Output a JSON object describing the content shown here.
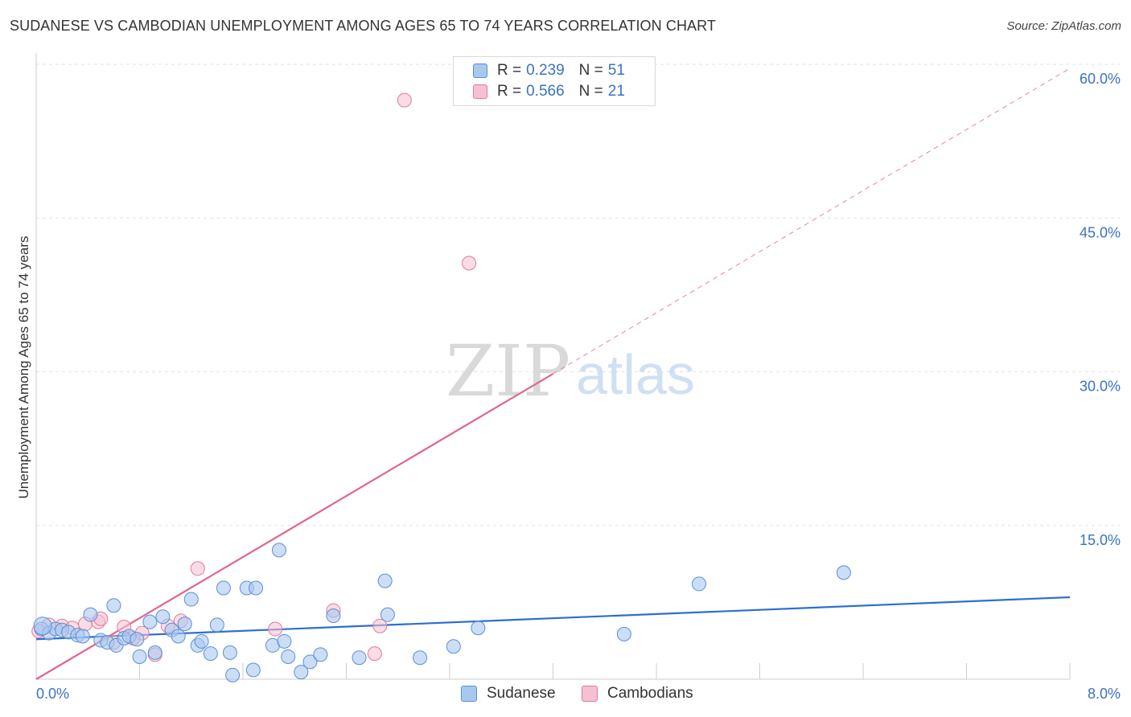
{
  "header": {
    "title": "SUDANESE VS CAMBODIAN UNEMPLOYMENT AMONG AGES 65 TO 74 YEARS CORRELATION CHART",
    "source": "Source: ZipAtlas.com"
  },
  "watermark": {
    "zip": "ZIP",
    "atlas": "atlas"
  },
  "legend": {
    "sudanese": {
      "r_label": "R =",
      "r_value": "0.239",
      "n_label": "N =",
      "n_value": "51"
    },
    "cambodians": {
      "r_label": "R =",
      "r_value": "0.566",
      "n_label": "N =",
      "n_value": "21"
    }
  },
  "colors": {
    "sudanese_fill": "#a8c8f0",
    "sudanese_stroke": "#5b8fd6",
    "sudanese_line": "#2c6fd1",
    "cambodians_fill": "#f7c0d0",
    "cambodians_stroke": "#e07a9c",
    "cambodians_line": "#e0668f",
    "grid": "#e2e2e2",
    "tick_text": "#3a72c4"
  },
  "chart_data": {
    "type": "scatter",
    "title": "SUDANESE VS CAMBODIAN UNEMPLOYMENT AMONG AGES 65 TO 74 YEARS CORRELATION CHART",
    "xlabel": "",
    "ylabel": "Unemployment Among Ages 65 to 74 years",
    "xlim": [
      0,
      8
    ],
    "ylim": [
      0,
      60
    ],
    "x_tick_labels": [
      "0.0%",
      "8.0%"
    ],
    "y_ticks": [
      15,
      30,
      45,
      60
    ],
    "y_tick_labels": [
      "15.0%",
      "30.0%",
      "45.0%",
      "60.0%"
    ],
    "grid": true,
    "series": [
      {
        "name": "Sudanese",
        "r": 0.239,
        "n": 51,
        "points": [
          [
            0.04,
            4.9
          ],
          [
            0.1,
            4.5
          ],
          [
            0.15,
            4.9
          ],
          [
            0.2,
            4.8
          ],
          [
            0.25,
            4.6
          ],
          [
            0.32,
            4.3
          ],
          [
            0.36,
            4.2
          ],
          [
            0.42,
            6.3
          ],
          [
            0.5,
            3.8
          ],
          [
            0.55,
            3.6
          ],
          [
            0.6,
            7.2
          ],
          [
            0.62,
            3.3
          ],
          [
            0.68,
            4.0
          ],
          [
            0.72,
            4.2
          ],
          [
            0.78,
            3.9
          ],
          [
            0.8,
            2.2
          ],
          [
            0.88,
            5.6
          ],
          [
            0.92,
            2.6
          ],
          [
            0.98,
            6.1
          ],
          [
            1.05,
            4.8
          ],
          [
            1.1,
            4.2
          ],
          [
            1.15,
            5.4
          ],
          [
            1.2,
            7.8
          ],
          [
            1.25,
            3.3
          ],
          [
            1.28,
            3.7
          ],
          [
            1.35,
            2.5
          ],
          [
            1.4,
            5.3
          ],
          [
            1.45,
            8.9
          ],
          [
            1.5,
            2.6
          ],
          [
            1.52,
            0.4
          ],
          [
            1.63,
            8.9
          ],
          [
            1.68,
            0.9
          ],
          [
            1.7,
            8.9
          ],
          [
            1.83,
            3.3
          ],
          [
            1.88,
            12.6
          ],
          [
            1.92,
            3.7
          ],
          [
            1.95,
            2.2
          ],
          [
            2.05,
            0.7
          ],
          [
            2.12,
            1.7
          ],
          [
            2.2,
            2.4
          ],
          [
            2.3,
            6.2
          ],
          [
            2.5,
            2.1
          ],
          [
            2.7,
            9.6
          ],
          [
            2.72,
            6.3
          ],
          [
            2.97,
            2.1
          ],
          [
            3.23,
            3.2
          ],
          [
            3.42,
            5.0
          ],
          [
            4.55,
            4.4
          ],
          [
            5.13,
            9.3
          ],
          [
            6.25,
            10.4
          ],
          [
            0.05,
            5.2
          ]
        ]
      },
      {
        "name": "Cambodians",
        "r": 0.566,
        "n": 21,
        "points": [
          [
            0.02,
            4.7
          ],
          [
            0.1,
            5.3
          ],
          [
            0.2,
            5.2
          ],
          [
            0.28,
            5.0
          ],
          [
            0.38,
            5.4
          ],
          [
            0.48,
            5.6
          ],
          [
            0.5,
            5.9
          ],
          [
            0.6,
            3.6
          ],
          [
            0.68,
            5.1
          ],
          [
            0.75,
            4.0
          ],
          [
            0.82,
            4.5
          ],
          [
            0.92,
            2.4
          ],
          [
            1.02,
            5.2
          ],
          [
            1.12,
            5.7
          ],
          [
            1.25,
            10.8
          ],
          [
            1.85,
            4.9
          ],
          [
            2.3,
            6.7
          ],
          [
            2.62,
            2.5
          ],
          [
            2.66,
            5.2
          ],
          [
            2.85,
            56.5
          ],
          [
            3.35,
            40.6
          ]
        ]
      }
    ],
    "trendlines": [
      {
        "series": "Sudanese",
        "x": [
          0,
          8
        ],
        "y": [
          3.9,
          8.0
        ],
        "style": "solid"
      },
      {
        "series": "Cambodians",
        "x": [
          0,
          4.0
        ],
        "y": [
          0.0,
          29.8
        ],
        "style": "solid"
      },
      {
        "series": "Cambodians",
        "x": [
          4.0,
          8.0
        ],
        "y": [
          29.8,
          59.6
        ],
        "style": "dashed"
      }
    ]
  }
}
